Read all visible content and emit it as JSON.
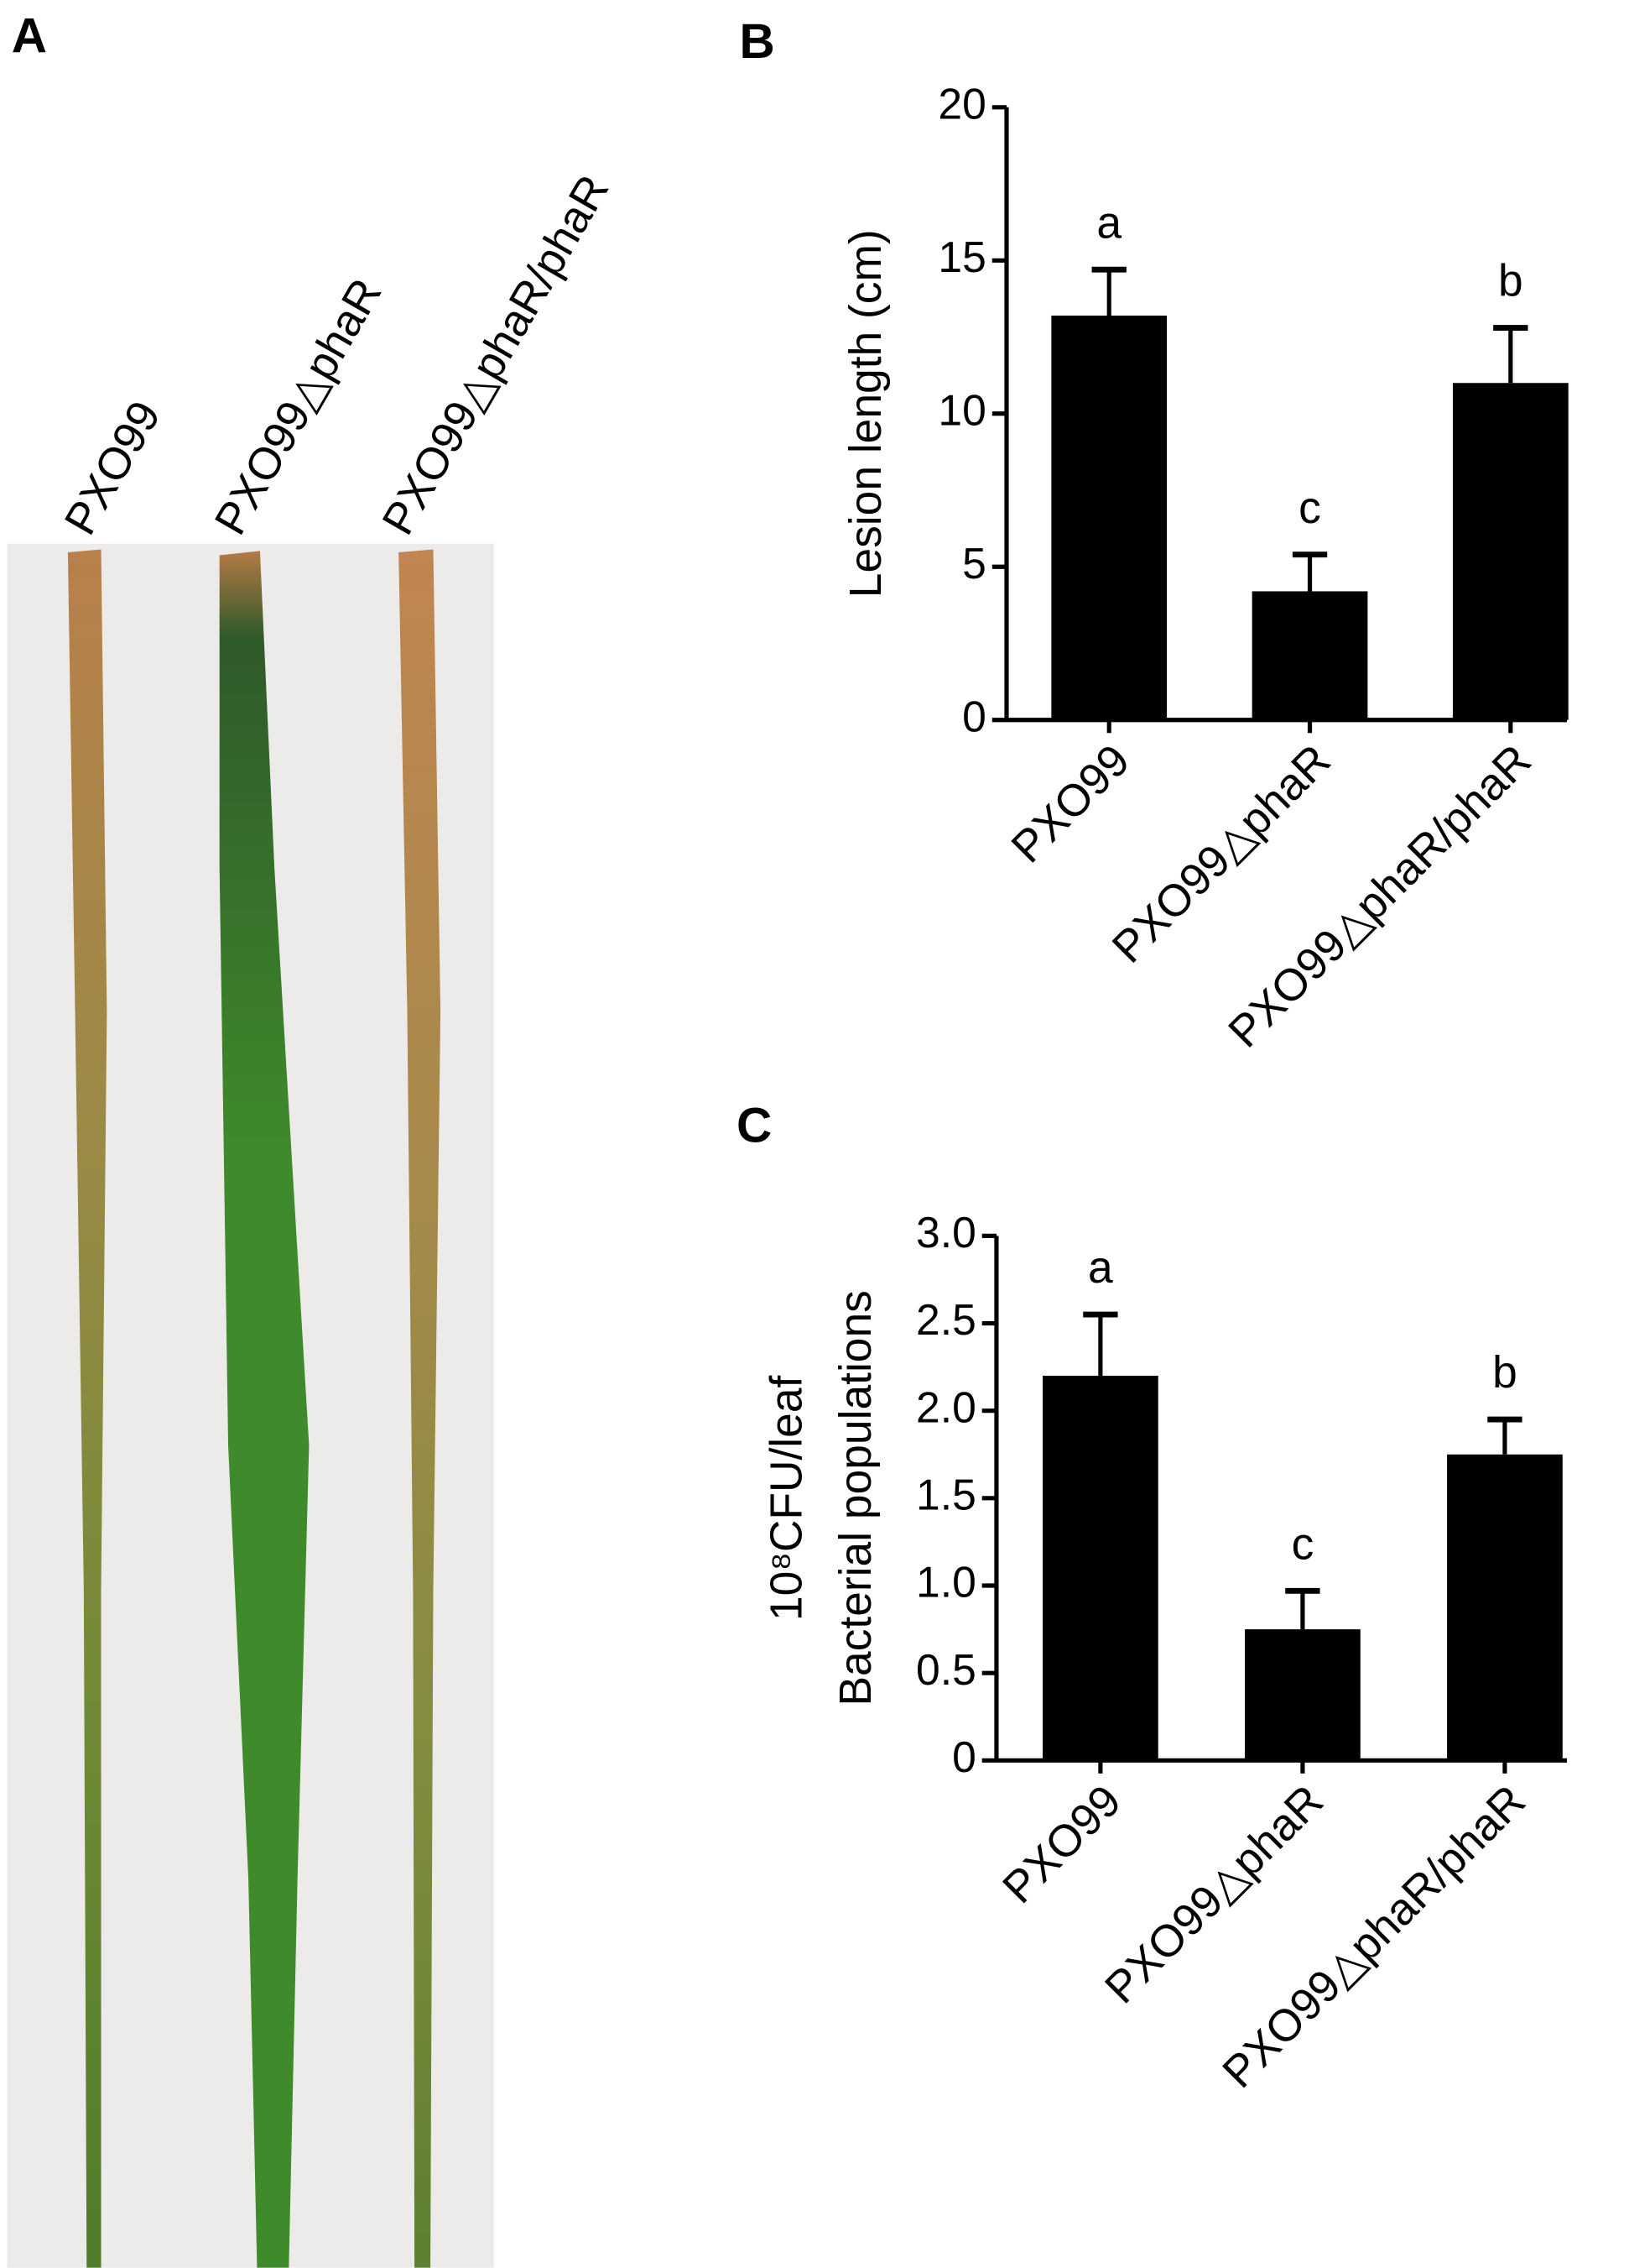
{
  "photo": {
    "panel": "A",
    "leaf_labels": [
      "PXO99",
      "PXO99△phaR",
      "PXO99△phaR/phaR"
    ]
  },
  "chart_data": [
    {
      "type": "bar",
      "panel": "B",
      "y_label": "Lesion length (cm)",
      "categories": [
        "PXO99",
        "PXO99△phaR",
        "PXO99△phaR/phaR"
      ],
      "values": [
        13.2,
        4.2,
        11.0
      ],
      "errors": [
        1.5,
        1.2,
        1.8
      ],
      "letters": [
        "a",
        "c",
        "b"
      ],
      "color": "#000000",
      "ylim": [
        0,
        20
      ],
      "yticks": [
        0,
        5,
        10,
        15,
        20
      ]
    },
    {
      "type": "bar",
      "panel": "C",
      "y_label": "Bacterial populations",
      "y_label_unit": "10⁸CFU/leaf",
      "categories": [
        "PXO99",
        "PXO99△phaR",
        "PXO99△phaR/phaR"
      ],
      "values": [
        2.2,
        0.75,
        1.75
      ],
      "errors": [
        0.35,
        0.22,
        0.2
      ],
      "letters": [
        "a",
        "c",
        "b"
      ],
      "color": "#000000",
      "ylim": [
        0,
        3.0
      ],
      "yticks": [
        0,
        0.5,
        {
          "value": 1.0,
          "label": "1.0"
        },
        1.5,
        {
          "value": 2.0,
          "label": "2.0"
        },
        2.5,
        {
          "value": 3.0,
          "label": "3.0"
        }
      ]
    }
  ]
}
